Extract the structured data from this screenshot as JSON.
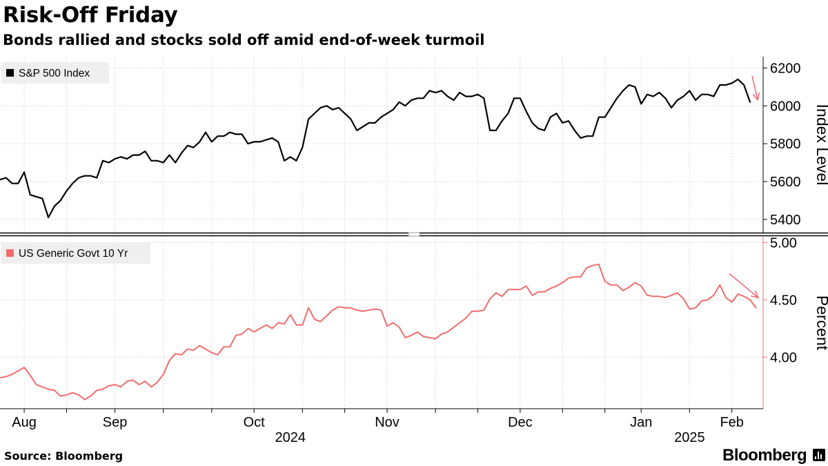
{
  "title": "Risk-Off Friday",
  "subtitle": "Bonds rallied and stocks sold off amid end-of-week turmoil",
  "source": "Source: Bloomberg",
  "brand": "Bloomberg",
  "brand_icon": "bloomberg-terminal-icon",
  "colors": {
    "stocks": "#000000",
    "bonds": "#f06c6c",
    "grid": "#d0d0d0",
    "arrow": "#f05a6a",
    "legend_bg": "#efefef"
  },
  "chart_data": [
    {
      "type": "line",
      "legend": "S&P 500 Index",
      "ylabel": "Index Level",
      "ylim": [
        5330,
        6260
      ],
      "yticks": [
        "5400",
        "5600",
        "5800",
        "6000",
        "6200"
      ],
      "ytick_values": [
        5400,
        5600,
        5800,
        6000,
        6200
      ],
      "annotation": "down-arrow-at-last-point",
      "values": [
        5610,
        5620,
        5590,
        5590,
        5650,
        5530,
        5520,
        5510,
        5410,
        5470,
        5500,
        5550,
        5590,
        5620,
        5630,
        5630,
        5620,
        5710,
        5700,
        5720,
        5730,
        5720,
        5740,
        5740,
        5760,
        5710,
        5710,
        5700,
        5740,
        5700,
        5750,
        5790,
        5780,
        5810,
        5860,
        5810,
        5840,
        5840,
        5860,
        5850,
        5850,
        5800,
        5810,
        5810,
        5820,
        5830,
        5810,
        5710,
        5730,
        5710,
        5780,
        5930,
        5960,
        5990,
        6000,
        5980,
        5990,
        5960,
        5930,
        5870,
        5890,
        5910,
        5910,
        5940,
        5960,
        5980,
        6020,
        6000,
        6030,
        6040,
        6040,
        6080,
        6070,
        6080,
        6050,
        6030,
        6070,
        6050,
        6050,
        6060,
        6040,
        5870,
        5870,
        5920,
        5960,
        6040,
        6040,
        5970,
        5910,
        5880,
        5870,
        5940,
        5960,
        5910,
        5920,
        5870,
        5830,
        5840,
        5840,
        5940,
        5940,
        5990,
        6040,
        6080,
        6110,
        6100,
        6010,
        6060,
        6050,
        6070,
        6040,
        5990,
        6030,
        6050,
        6080,
        6030,
        6060,
        6060,
        6050,
        6110,
        6110,
        6120,
        6140,
        6110,
        6020
      ]
    },
    {
      "type": "line",
      "legend": "US Generic Govt 10 Yr",
      "ylabel": "Percent",
      "ylim": [
        3.55,
        5.05
      ],
      "yticks": [
        "4.00",
        "4.50",
        "5.00"
      ],
      "ytick_values": [
        4.0,
        4.5,
        5.0
      ],
      "annotation": "down-arrow-at-last-point",
      "values": [
        3.82,
        3.83,
        3.85,
        3.88,
        3.91,
        3.84,
        3.76,
        3.74,
        3.72,
        3.71,
        3.66,
        3.67,
        3.69,
        3.67,
        3.63,
        3.66,
        3.71,
        3.72,
        3.75,
        3.76,
        3.74,
        3.79,
        3.8,
        3.76,
        3.79,
        3.74,
        3.78,
        3.85,
        3.97,
        4.03,
        4.02,
        4.07,
        4.06,
        4.1,
        4.07,
        4.04,
        4.02,
        4.09,
        4.09,
        4.19,
        4.2,
        4.25,
        4.22,
        4.25,
        4.28,
        4.25,
        4.3,
        4.29,
        4.37,
        4.28,
        4.28,
        4.43,
        4.33,
        4.31,
        4.36,
        4.41,
        4.44,
        4.43,
        4.43,
        4.41,
        4.4,
        4.41,
        4.42,
        4.41,
        4.27,
        4.3,
        4.26,
        4.17,
        4.19,
        4.22,
        4.18,
        4.17,
        4.16,
        4.2,
        4.22,
        4.26,
        4.3,
        4.34,
        4.4,
        4.4,
        4.41,
        4.51,
        4.56,
        4.53,
        4.59,
        4.59,
        4.59,
        4.62,
        4.54,
        4.57,
        4.57,
        4.6,
        4.62,
        4.65,
        4.69,
        4.7,
        4.7,
        4.78,
        4.8,
        4.81,
        4.66,
        4.63,
        4.63,
        4.58,
        4.61,
        4.65,
        4.62,
        4.54,
        4.53,
        4.53,
        4.52,
        4.54,
        4.56,
        4.51,
        4.42,
        4.43,
        4.49,
        4.5,
        4.54,
        4.63,
        4.52,
        4.48,
        4.55,
        4.53,
        4.5,
        4.43
      ]
    }
  ],
  "x_axis": {
    "months": [
      "Aug",
      "Sep",
      "Oct",
      "Nov",
      "Dec",
      "Jan",
      "Feb"
    ],
    "month_positions": [
      4,
      19,
      42,
      64,
      86,
      106,
      121
    ],
    "years": [
      "2024",
      "2025"
    ],
    "year_positions": [
      48,
      114
    ],
    "period_boundaries": [
      4,
      11,
      19,
      27,
      35,
      42,
      50,
      57,
      64,
      72,
      79,
      86,
      93,
      100,
      106,
      114,
      121
    ]
  }
}
